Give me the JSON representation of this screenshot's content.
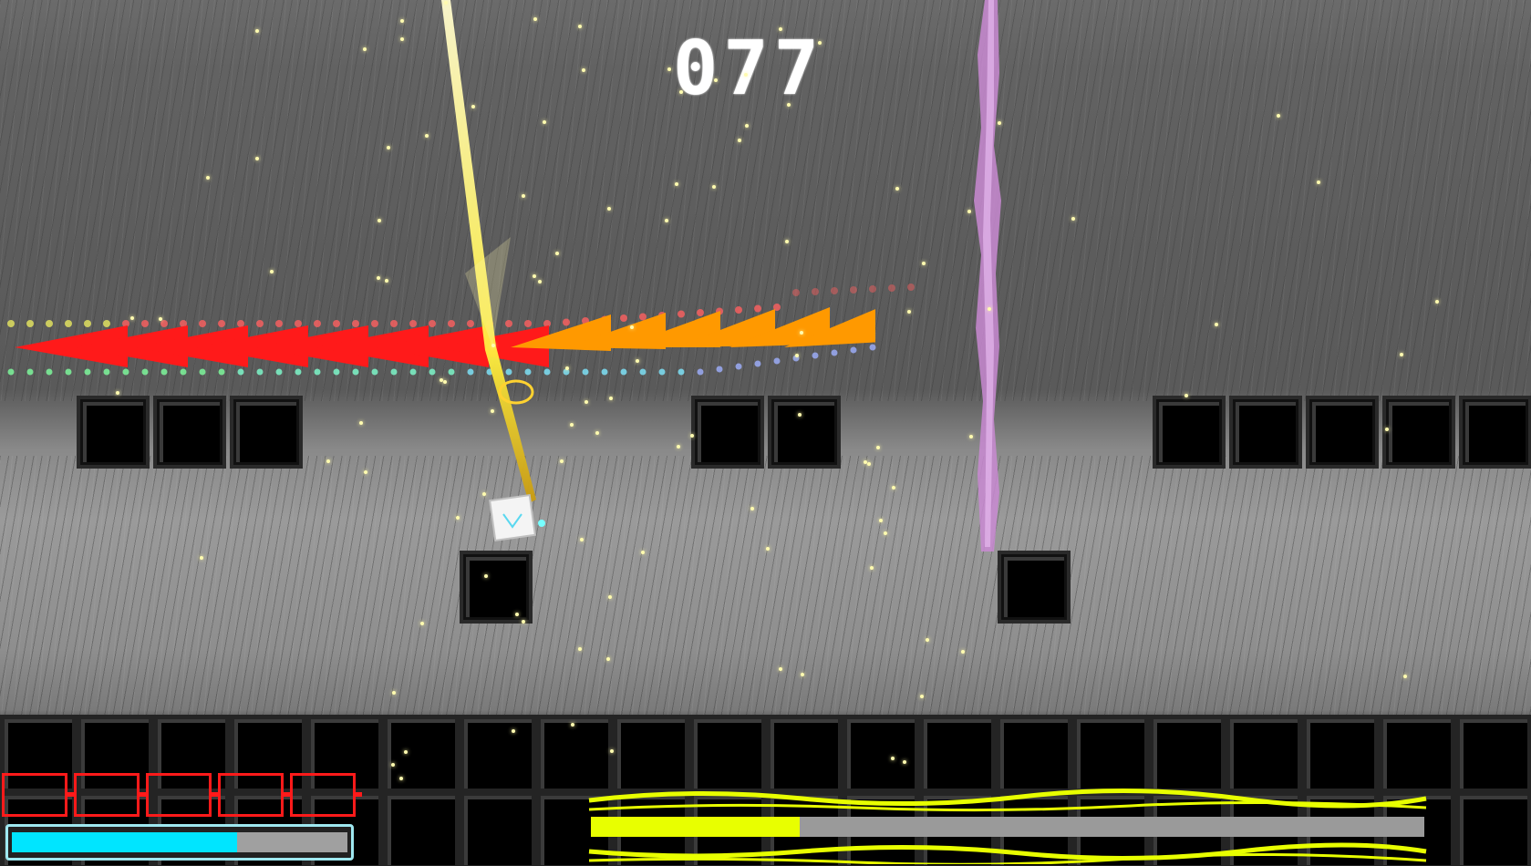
{
  "score": "077",
  "colors": {
    "hp_frame": "#ff1a1a",
    "energy": "#00e5ff",
    "boss": "#e8ff00",
    "arrow_red": "#ff1a1a",
    "arrow_orange": "#ff9900",
    "laser_purple": "#d08ad8",
    "sword": "#ffff66"
  },
  "hud": {
    "health_cells": 5,
    "energy_fraction": 0.67,
    "boss_health_fraction": 0.25
  },
  "icons": {
    "player": "player-cube-icon",
    "sword": "light-sword-icon"
  }
}
